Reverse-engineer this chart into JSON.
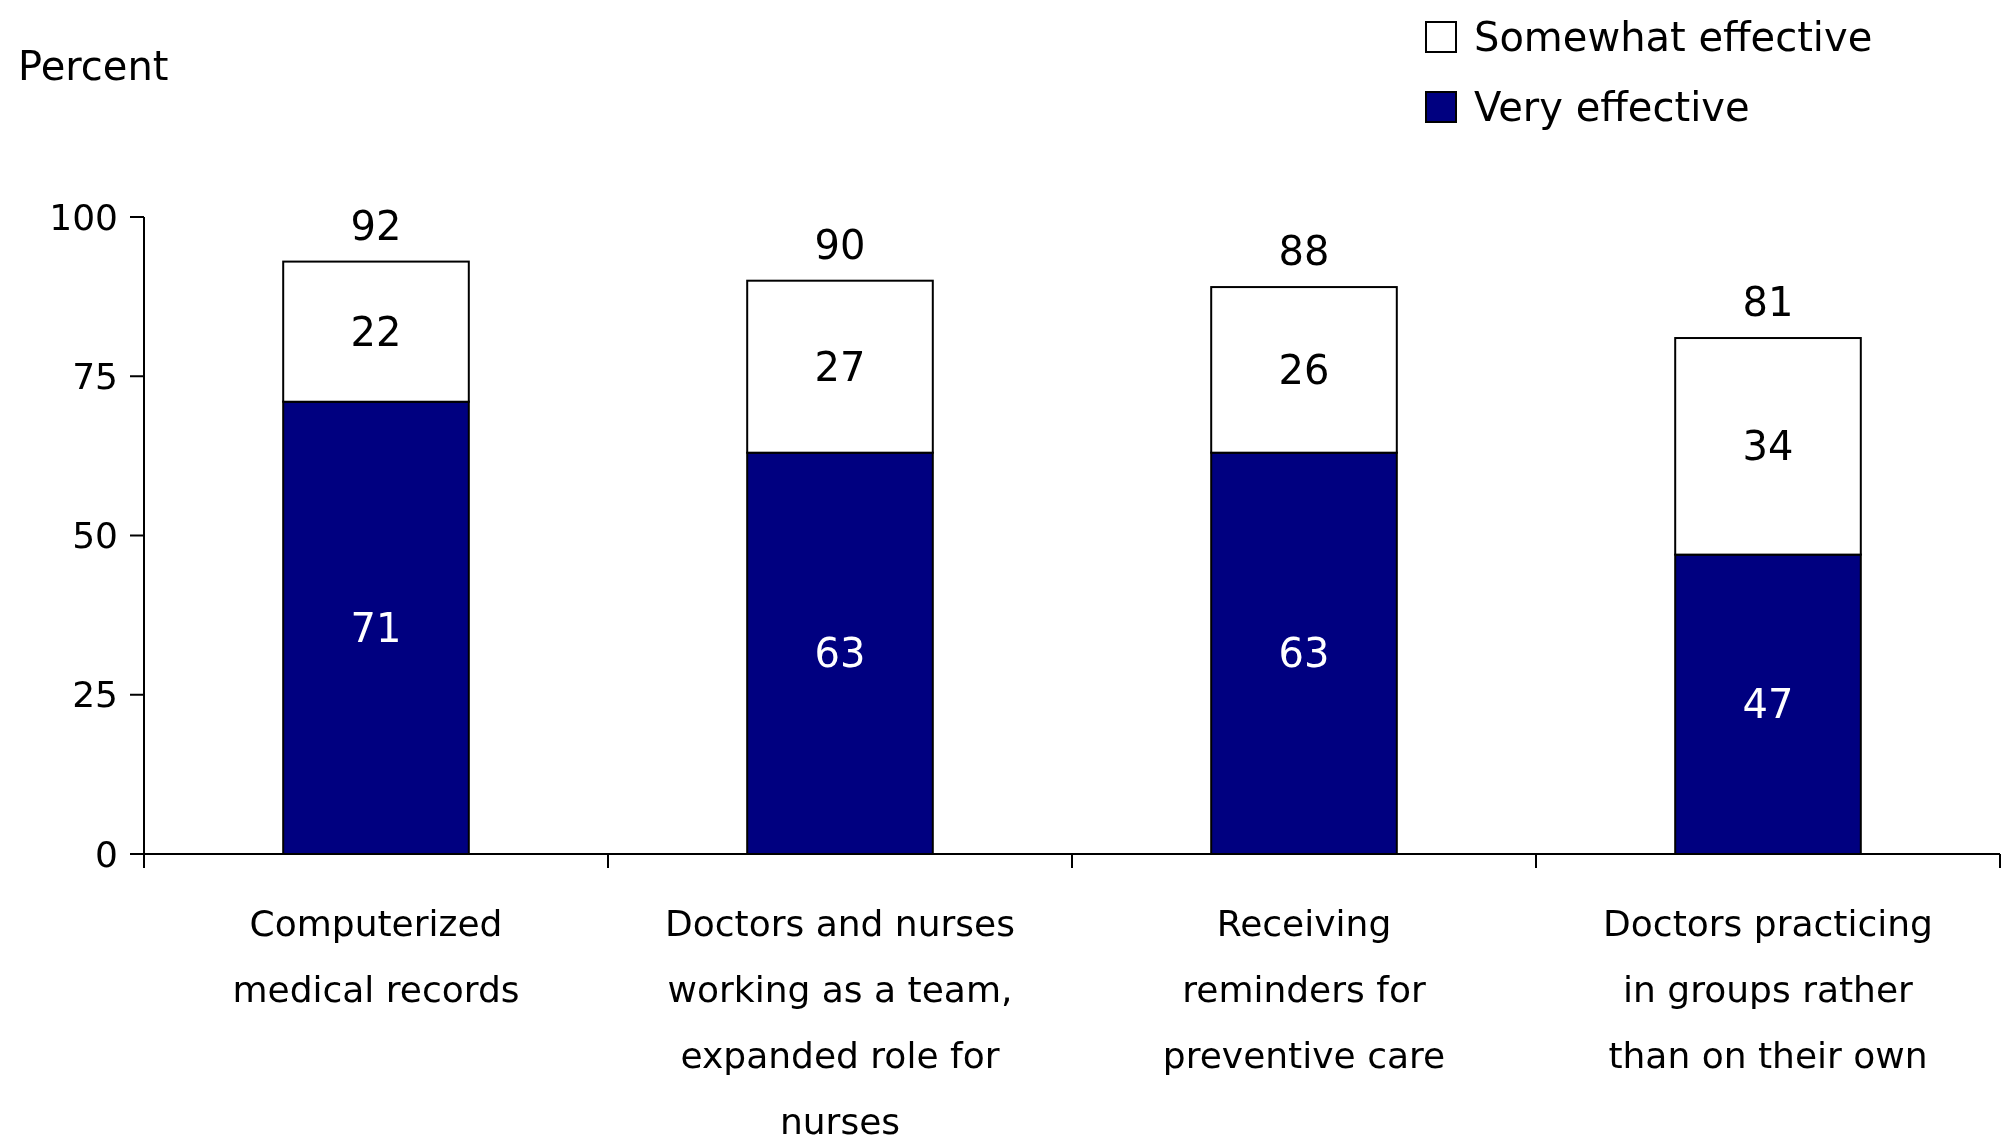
{
  "chart_data": {
    "type": "bar",
    "stacked": true,
    "ylabel": "Percent",
    "categories": [
      "Computerized medical records",
      "Doctors and nurses working as a team, expanded role for nurses",
      "Receiving reminders for preventive care",
      "Doctors practicing in groups rather than on their own"
    ],
    "series": [
      {
        "name": "Very effective",
        "color": "#000080",
        "values": [
          71,
          63,
          63,
          47
        ]
      },
      {
        "name": "Somewhat effective",
        "color": "#ffffff",
        "values": [
          22,
          27,
          26,
          34
        ]
      }
    ],
    "ylim": [
      0,
      100
    ],
    "yticks": [
      0,
      25,
      50,
      75,
      100
    ],
    "data_labels": true,
    "totals": [
      "92",
      "90",
      "88",
      "81"
    ],
    "legend": "top right",
    "grid": false
  }
}
